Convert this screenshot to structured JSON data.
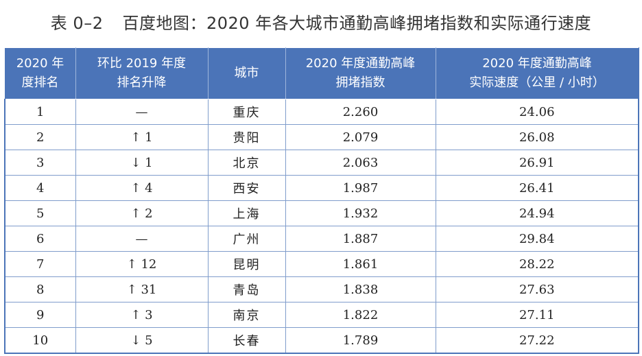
{
  "title": {
    "number": "表 0–2",
    "text": "百度地图：2020 年各大城市通勤高峰拥堵指数和实际通行速度"
  },
  "headers": [
    [
      "2020 年",
      "度排名"
    ],
    [
      "环比 2019 年度",
      "排名升降"
    ],
    [
      "城市"
    ],
    [
      "2020 年度通勤高峰",
      "拥堵指数"
    ],
    [
      "2020 年度通勤高峰",
      "实际速度（公里 / 小时）"
    ]
  ],
  "rows": [
    {
      "rank": "1",
      "change": "—",
      "city": "重庆",
      "index": "2.260",
      "speed": "24.06"
    },
    {
      "rank": "2",
      "change": "↑ 1",
      "city": "贵阳",
      "index": "2.079",
      "speed": "26.08"
    },
    {
      "rank": "3",
      "change": "↓ 1",
      "city": "北京",
      "index": "2.063",
      "speed": "26.91"
    },
    {
      "rank": "4",
      "change": "↑ 4",
      "city": "西安",
      "index": "1.987",
      "speed": "26.41"
    },
    {
      "rank": "5",
      "change": "↑ 2",
      "city": "上海",
      "index": "1.932",
      "speed": "24.94"
    },
    {
      "rank": "6",
      "change": "—",
      "city": "广州",
      "index": "1.887",
      "speed": "29.84"
    },
    {
      "rank": "7",
      "change": "↑ 12",
      "city": "昆明",
      "index": "1.861",
      "speed": "28.22"
    },
    {
      "rank": "8",
      "change": "↑ 31",
      "city": "青岛",
      "index": "1.838",
      "speed": "27.63"
    },
    {
      "rank": "9",
      "change": "↑ 3",
      "city": "南京",
      "index": "1.822",
      "speed": "27.11"
    },
    {
      "rank": "10",
      "change": "↓ 5",
      "city": "长春",
      "index": "1.789",
      "speed": "27.22"
    }
  ],
  "colors": {
    "header_bg": "#4b74b8",
    "border": "#7f9ccb"
  }
}
